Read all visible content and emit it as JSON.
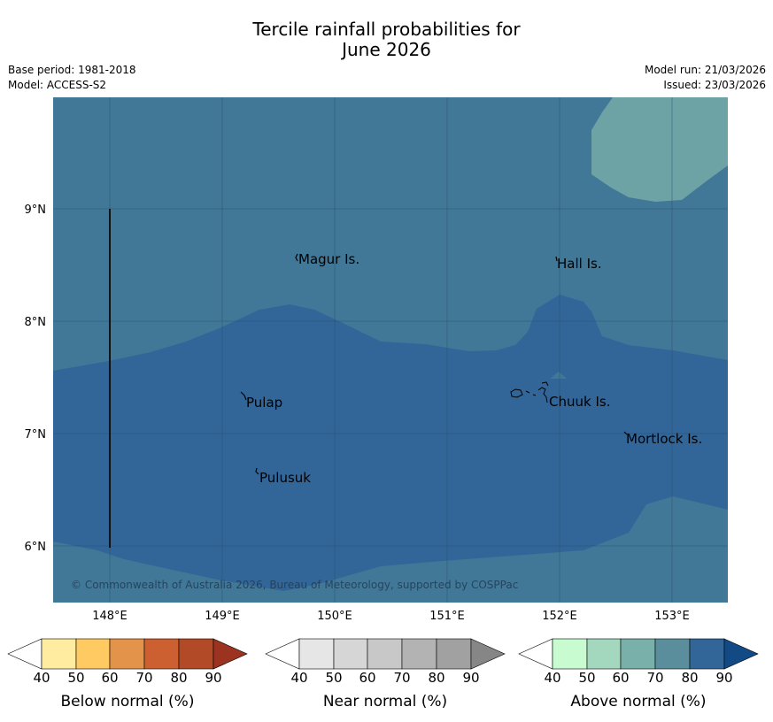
{
  "header": {
    "title_line1": "Tercile rainfall probabilities for",
    "title_line2": "June 2026",
    "base_period": "Base period: 1981-2018",
    "model": "Model: ACCESS-S2",
    "model_run": "Model run: 21/03/2026",
    "issued": "Issued: 23/03/2026"
  },
  "map": {
    "lon_ticks": [
      "148°E",
      "149°E",
      "150°E",
      "151°E",
      "152°E",
      "153°E"
    ],
    "lat_ticks": [
      "9°N",
      "8°N",
      "7°N",
      "6°N"
    ],
    "places": [
      "Magur Is.",
      "Hall Is.",
      "Pulap",
      "Chuuk Is.",
      "Mortlock Is.",
      "Pulusuk"
    ],
    "copyright": "© Commonwealth of Australia 2026, Bureau of Meteorology, supported by COSPPac",
    "colors": {
      "above_70_80": "#417897",
      "above_80_90": "#326699",
      "above_60_70": "#6ea3a5"
    }
  },
  "legend": {
    "below": {
      "title": "Below normal (%)",
      "ticks": [
        "40",
        "50",
        "60",
        "70",
        "80",
        "90"
      ],
      "colors": [
        "#ffffff",
        "#ffeca0",
        "#ffca62",
        "#e3934a",
        "#cd6030",
        "#b24a28",
        "#9b3320"
      ]
    },
    "near": {
      "title": "Near normal (%)",
      "ticks": [
        "40",
        "50",
        "60",
        "70",
        "80",
        "90"
      ],
      "colors": [
        "#ffffff",
        "#e6e6e6",
        "#d6d6d6",
        "#c8c8c8",
        "#b3b3b3",
        "#a1a1a1",
        "#868686"
      ]
    },
    "above": {
      "title": "Above normal (%)",
      "ticks": [
        "40",
        "50",
        "60",
        "70",
        "80",
        "90"
      ],
      "colors": [
        "#ffffff",
        "#c8fcd0",
        "#a3d8bf",
        "#7ab0aa",
        "#5a8e9d",
        "#326699",
        "#124a86"
      ]
    }
  }
}
